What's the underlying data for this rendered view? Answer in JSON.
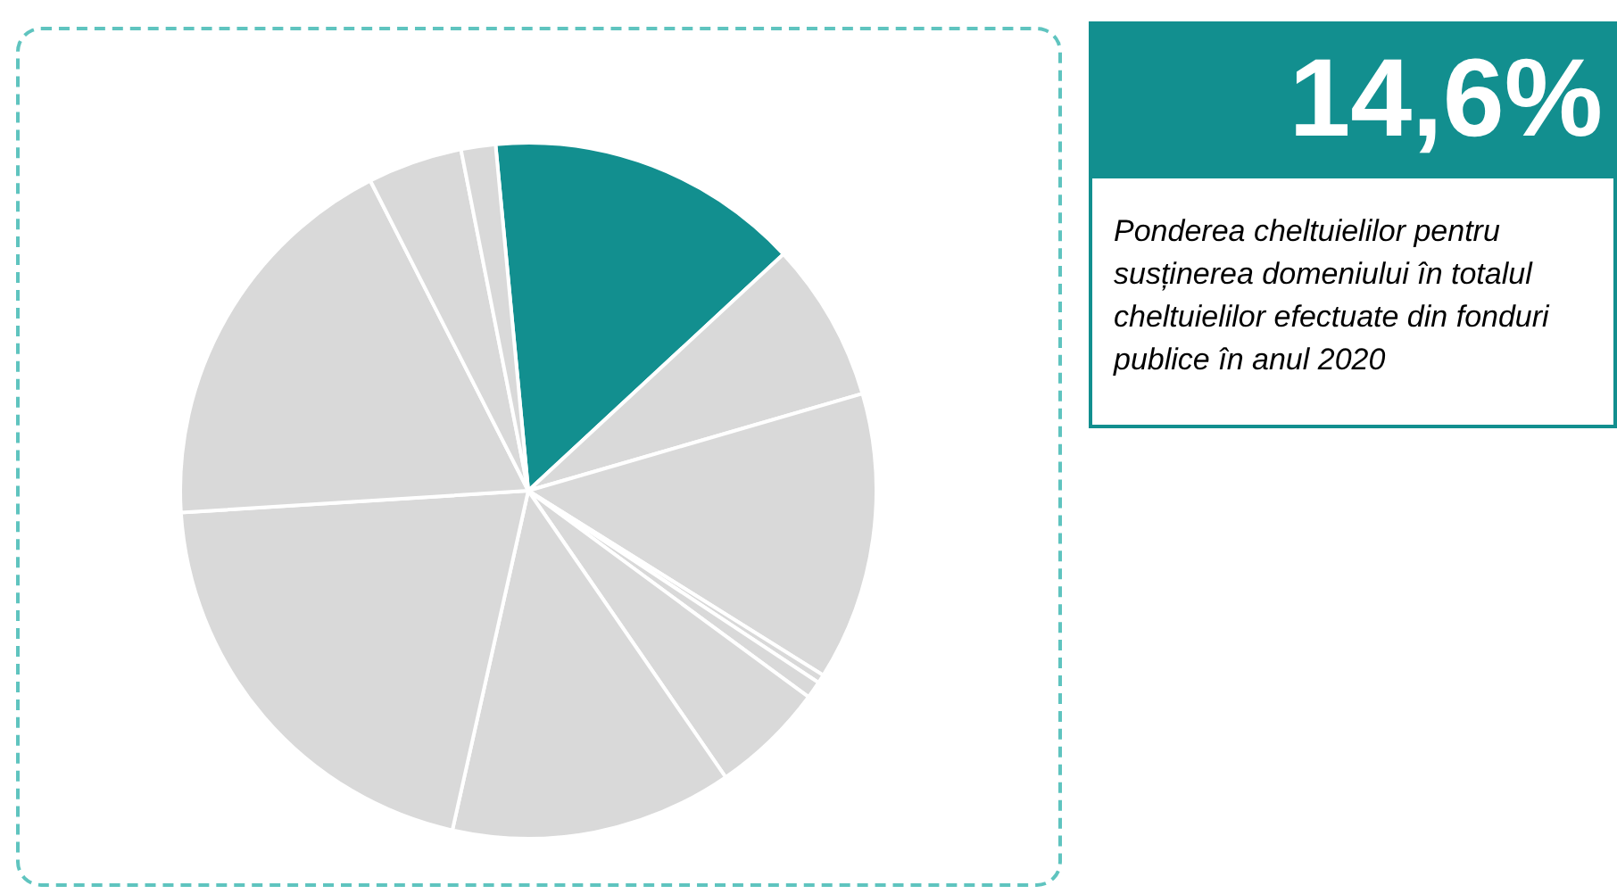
{
  "chart_data": {
    "type": "pie",
    "categories": [
      null,
      null,
      null,
      null,
      null,
      null,
      null,
      null,
      null,
      null,
      null
    ],
    "values": [
      14.6,
      7.4,
      13.4,
      0.4,
      0.8,
      5.3,
      13.1,
      20.5,
      18.5,
      4.4,
      1.6
    ],
    "colors": [
      "#128f8f",
      "#d9d9d9",
      "#d9d9d9",
      "#d9d9d9",
      "#d9d9d9",
      "#d9d9d9",
      "#d9d9d9",
      "#d9d9d9",
      "#d9d9d9",
      "#d9d9d9",
      "#d9d9d9"
    ],
    "annotations": [
      "14,6%",
      "Ponderea cheltuielilor pentru susținerea domeniului în totalul cheltuielilor efectuate din fonduri publice în anul 2020"
    ],
    "legend": false
  }
}
